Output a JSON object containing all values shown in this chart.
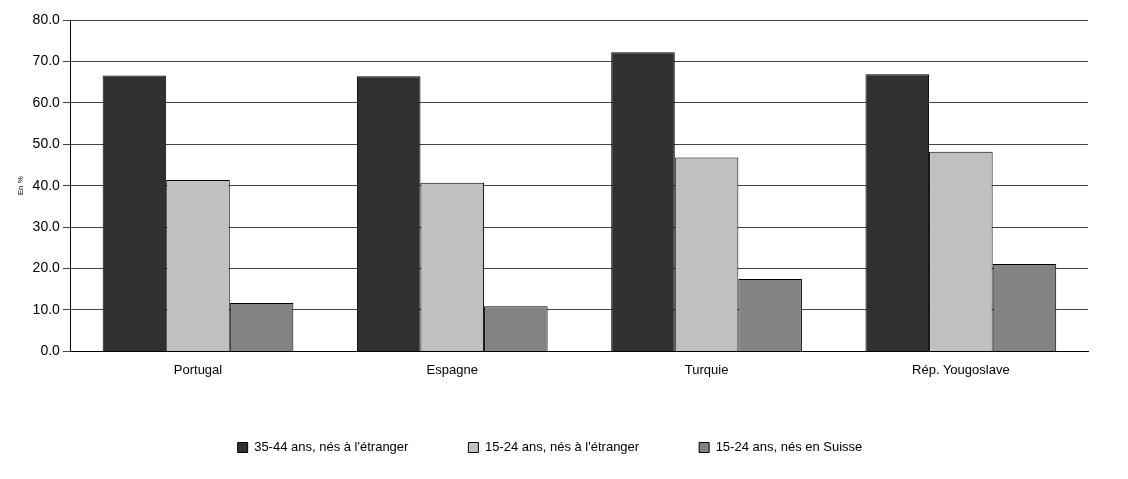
{
  "chart_data": {
    "type": "bar",
    "ylabel": "En %",
    "categories": [
      "Portugal",
      "Espagne",
      "Turquie",
      "Rép. Yougoslave"
    ],
    "series": [
      {
        "name": "35-44 ans, nés à l'étranger",
        "color": "#303030",
        "values": [
          66.6,
          66.4,
          72.2,
          66.9
        ]
      },
      {
        "name": "15-24 ans, nés à l'étranger",
        "color": "#c0c0c0",
        "values": [
          41.4,
          40.7,
          46.8,
          48.2
        ]
      },
      {
        "name": "15-24 ans, nés en Suisse",
        "color": "#838383",
        "values": [
          11.7,
          10.9,
          17.5,
          21.1
        ]
      }
    ],
    "ylim": [
      0,
      80
    ],
    "yticks": [
      {
        "value": 0,
        "label": "0.0"
      },
      {
        "value": 10,
        "label": "10.0"
      },
      {
        "value": 20,
        "label": "20.0"
      },
      {
        "value": 30,
        "label": "30.0"
      },
      {
        "value": 40,
        "label": "40.0"
      },
      {
        "value": 50,
        "label": "50.0"
      },
      {
        "value": 60,
        "label": "60.0"
      },
      {
        "value": 70,
        "label": "70.0"
      },
      {
        "value": 80,
        "label": "80.0"
      }
    ],
    "grid": "y",
    "legend": "bottom"
  }
}
